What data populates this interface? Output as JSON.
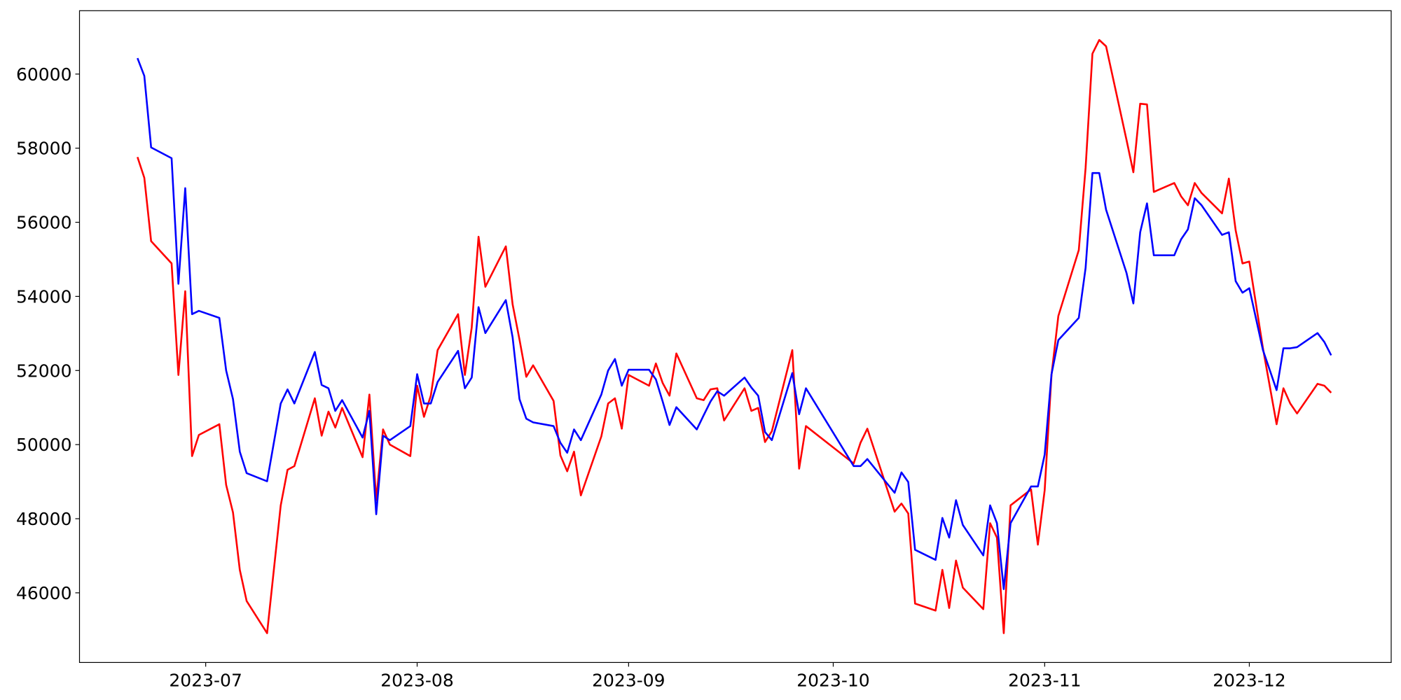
{
  "chart_data": {
    "type": "line",
    "x": [
      172,
      173,
      174,
      177,
      178,
      179,
      180,
      181,
      184,
      185,
      186,
      187,
      188,
      191,
      193,
      194,
      195,
      198,
      199,
      200,
      201,
      202,
      205,
      206,
      207,
      208,
      209,
      212,
      213,
      214,
      215,
      216,
      219,
      220,
      221,
      222,
      223,
      226,
      227,
      228,
      229,
      230,
      233,
      234,
      235,
      236,
      237,
      240,
      241,
      242,
      243,
      244,
      247,
      248,
      249,
      250,
      251,
      254,
      255,
      256,
      257,
      258,
      261,
      262,
      263,
      264,
      265,
      268,
      269,
      270,
      277,
      278,
      279,
      283,
      284,
      285,
      286,
      289,
      290,
      291,
      292,
      293,
      296,
      297,
      298,
      299,
      300,
      303,
      304,
      305,
      306,
      307,
      310,
      311,
      312,
      313,
      314,
      317,
      318,
      319,
      320,
      321,
      324,
      325,
      326,
      327,
      328,
      331,
      332,
      333,
      334,
      335,
      337,
      339,
      340,
      341,
      342,
      345,
      346,
      347
    ],
    "series": [
      {
        "color": "#ff0000",
        "values": [
          57760,
          57200,
          55490,
          54890,
          51880,
          54140,
          49690,
          50260,
          50550,
          48910,
          48170,
          46620,
          45780,
          44910,
          48360,
          49320,
          49420,
          51250,
          50240,
          50890,
          50460,
          50990,
          49660,
          51350,
          48500,
          50410,
          50000,
          49690,
          51590,
          50750,
          51320,
          52550,
          53520,
          51880,
          53160,
          55610,
          54260,
          55350,
          53780,
          52840,
          51830,
          52140,
          51180,
          49710,
          49280,
          49810,
          48630,
          50220,
          51110,
          51250,
          50430,
          51880,
          51590,
          52190,
          51660,
          51320,
          52460,
          51250,
          51200,
          51490,
          51520,
          50650,
          51520,
          50910,
          50990,
          50070,
          50360,
          52550,
          49350,
          50500,
          49490,
          50050,
          50430,
          48190,
          48410,
          48140,
          45710,
          45520,
          46620,
          45590,
          46870,
          46140,
          45560,
          47880,
          47490,
          44910,
          48360,
          48790,
          47300,
          48770,
          51880,
          53470,
          55250,
          57470,
          60550,
          60920,
          60750,
          58220,
          57350,
          59200,
          59180,
          56820,
          57060,
          56700,
          56460,
          57060,
          56790,
          56240,
          57180,
          55780,
          54890,
          54940,
          52600,
          50550,
          51520,
          51110,
          50840,
          51640,
          51590,
          51400
        ]
      },
      {
        "color": "#0000ff",
        "values": [
          60430,
          59950,
          58020,
          57730,
          54340,
          56920,
          53520,
          53610,
          53420,
          52000,
          51230,
          49810,
          49230,
          49010,
          51110,
          51490,
          51110,
          52500,
          51610,
          51520,
          50910,
          51200,
          50190,
          50910,
          48120,
          50240,
          50120,
          50500,
          51900,
          51110,
          51110,
          51690,
          52530,
          51520,
          51810,
          53710,
          53010,
          53900,
          52890,
          51230,
          50700,
          50600,
          50500,
          50050,
          49780,
          50410,
          50120,
          51350,
          52000,
          52310,
          51590,
          52020,
          52020,
          51760,
          51160,
          50530,
          51010,
          50410,
          50790,
          51160,
          51440,
          51320,
          51810,
          51540,
          51320,
          50340,
          50120,
          51930,
          50820,
          51520,
          49420,
          49420,
          49610,
          48700,
          49250,
          48990,
          47160,
          46890,
          48020,
          47490,
          48500,
          47830,
          47010,
          48360,
          47880,
          46100,
          47880,
          48870,
          48870,
          49730,
          51900,
          52820,
          53420,
          54770,
          57330,
          57330,
          56340,
          54630,
          53810,
          55730,
          56510,
          55110,
          55110,
          55540,
          55810,
          56650,
          56460,
          55660,
          55730,
          54410,
          54100,
          54220,
          52550,
          51470,
          52600,
          52600,
          52630,
          53010,
          52770,
          52410
        ]
      }
    ],
    "xlim": [
      163.5,
      355.8
    ],
    "xticks": [
      {
        "value": 182,
        "label": "2023-07"
      },
      {
        "value": 213,
        "label": "2023-08"
      },
      {
        "value": 244,
        "label": "2023-09"
      },
      {
        "value": 274,
        "label": "2023-10"
      },
      {
        "value": 305,
        "label": "2023-11"
      },
      {
        "value": 335,
        "label": "2023-12"
      }
    ],
    "ylim": [
      44120,
      61710
    ],
    "yticks": [
      46000,
      48000,
      50000,
      52000,
      54000,
      56000,
      58000,
      60000
    ],
    "grid": false
  }
}
